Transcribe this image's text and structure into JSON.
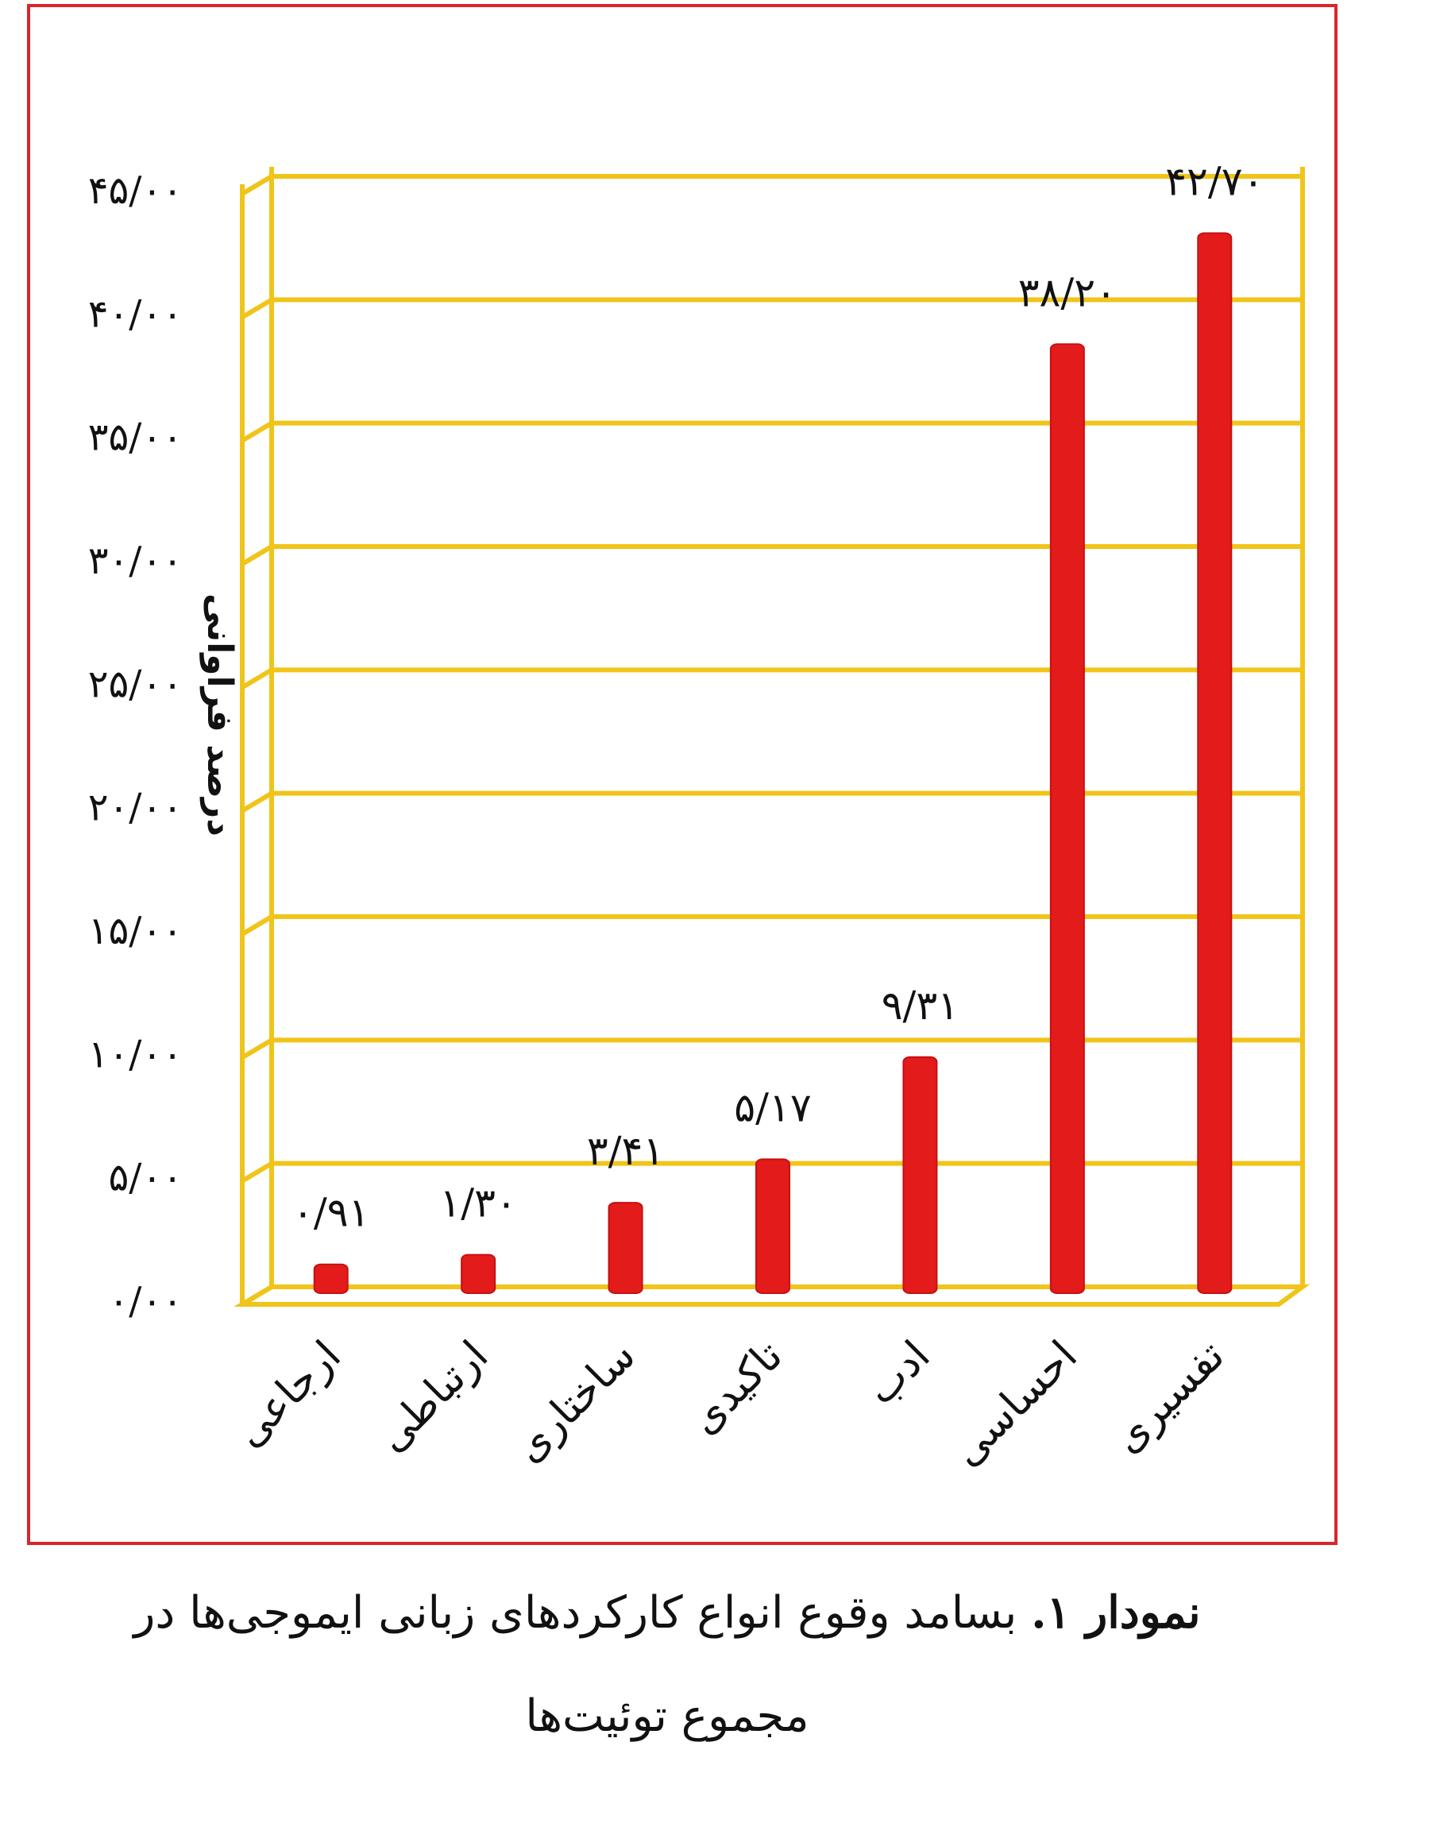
{
  "chart_data": {
    "type": "bar",
    "ylabel": "درصد فراوانی",
    "ylim": [
      0,
      45
    ],
    "yticks": [
      {
        "value": 0,
        "label": "۰/۰۰"
      },
      {
        "value": 5,
        "label": "۵/۰۰"
      },
      {
        "value": 10,
        "label": "۱۰/۰۰"
      },
      {
        "value": 15,
        "label": "۱۵/۰۰"
      },
      {
        "value": 20,
        "label": "۲۰/۰۰"
      },
      {
        "value": 25,
        "label": "۲۵/۰۰"
      },
      {
        "value": 30,
        "label": "۳۰/۰۰"
      },
      {
        "value": 35,
        "label": "۳۵/۰۰"
      },
      {
        "value": 40,
        "label": "۴۰/۰۰"
      },
      {
        "value": 45,
        "label": "۴۵/۰۰"
      }
    ],
    "categories": [
      "ارجاعی",
      "ارتباطی",
      "ساختاری",
      "تاکیدی",
      "ادب",
      "احساسی",
      "تفسیری"
    ],
    "values": [
      0.91,
      1.3,
      3.41,
      5.17,
      9.31,
      38.2,
      42.7
    ],
    "value_labels": [
      "۰/۹۱",
      "۱/۳۰",
      "۳/۴۱",
      "۵/۱۷",
      "۹/۳۱",
      "۳۸/۲۰",
      "۴۲/۷۰"
    ],
    "grid": true,
    "colors": {
      "bar": "#e31b1b",
      "grid": "#f0c419",
      "frame": "#d9262b"
    }
  },
  "caption": {
    "lead": "نمودار ۱.",
    "line1": " بسامد وقوع انواع کارکردهای زبانی ایموجی‌ها در",
    "line2": "مجموع توئیت‌ها"
  }
}
